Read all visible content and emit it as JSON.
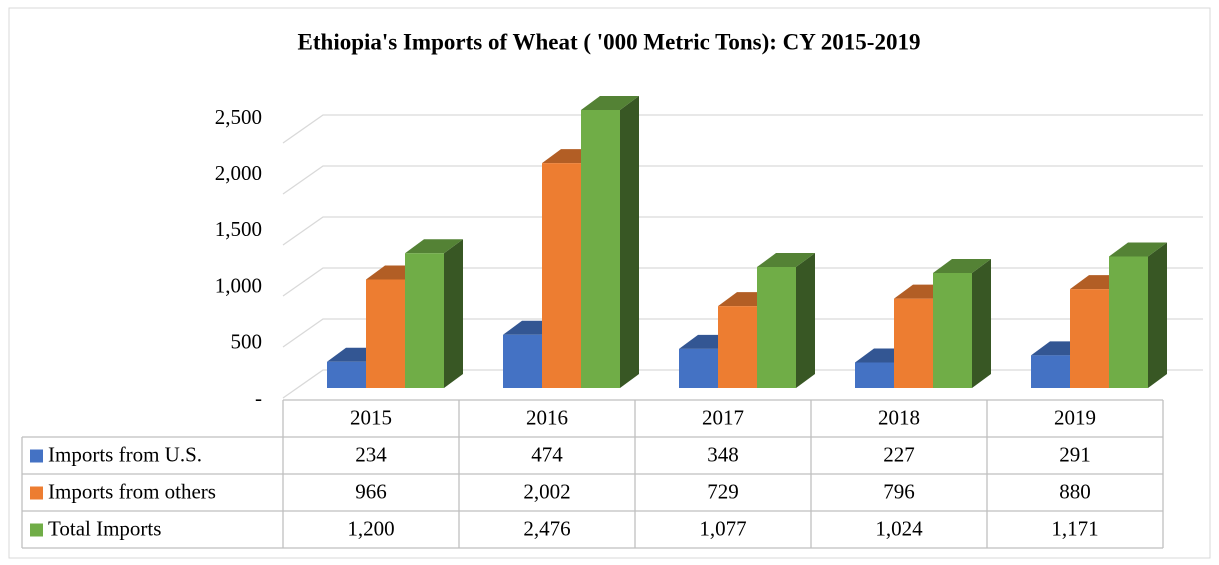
{
  "chart_data": {
    "type": "bar3d",
    "title": "Ethiopia's Imports of Wheat ( '000 Metric Tons): CY 2015-2019",
    "categories": [
      "2015",
      "2016",
      "2017",
      "2018",
      "2019"
    ],
    "series": [
      {
        "name": "Imports from U.S.",
        "color": "#4472c4",
        "values": [
          234,
          474,
          348,
          227,
          291
        ],
        "value_labels": [
          "234",
          "474",
          "348",
          "227",
          "291"
        ]
      },
      {
        "name": "Imports from others",
        "color": "#ed7d31",
        "values": [
          966,
          2002,
          729,
          796,
          880
        ],
        "value_labels": [
          "966",
          "2,002",
          "729",
          "796",
          "880"
        ]
      },
      {
        "name": "Total Imports",
        "color": "#70ad47",
        "values": [
          1200,
          2476,
          1077,
          1024,
          1171
        ],
        "value_labels": [
          "1,200",
          "2,476",
          "1,077",
          "1,024",
          "1,171"
        ]
      }
    ],
    "ylim": [
      0,
      2500
    ],
    "yticks": [
      {
        "value": 0,
        "label": "-"
      },
      500,
      {
        "value": 1000,
        "label": "1,000"
      },
      {
        "value": 1500,
        "label": "1,500"
      },
      {
        "value": 2000,
        "label": "2,000"
      },
      {
        "value": 2500,
        "label": "2,500"
      }
    ],
    "grid": true,
    "legend": "table"
  }
}
